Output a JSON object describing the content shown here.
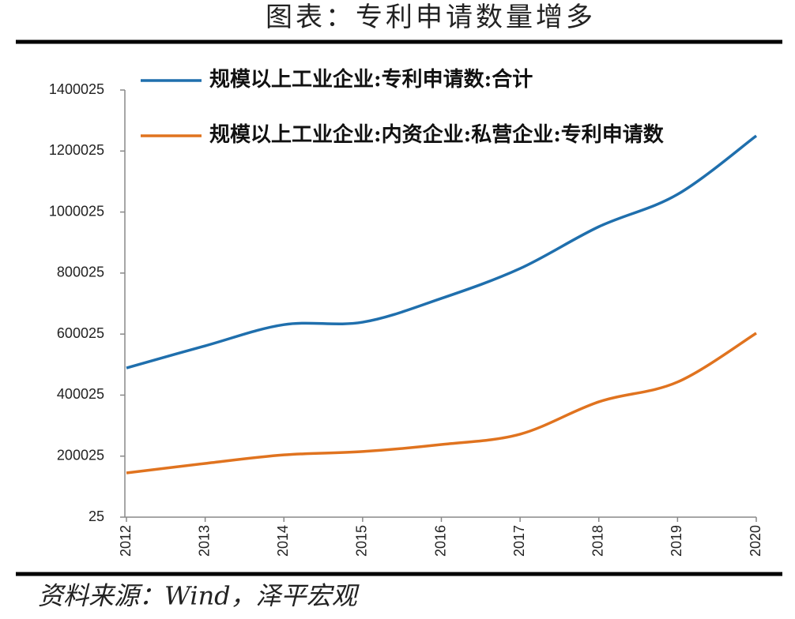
{
  "chart_data": {
    "type": "line",
    "title": "图表：专利申请数量增多",
    "source": "资料来源：Wind，泽平宏观",
    "categories": [
      "2012",
      "2013",
      "2014",
      "2015",
      "2016",
      "2017",
      "2018",
      "2019",
      "2020"
    ],
    "series": [
      {
        "name": "规模以上工业企业:专利申请数:合计",
        "color": "#1f6fad",
        "values": [
          489000,
          561500,
          631000,
          639000,
          717000,
          815000,
          952000,
          1058000,
          1250000
        ]
      },
      {
        "name": "规模以上工业企业:内资企业:私营企业:专利申请数",
        "color": "#e0731f",
        "values": [
          145000,
          176000,
          204000,
          215000,
          238000,
          272000,
          378000,
          443000,
          603000
        ]
      }
    ],
    "ylim": [
      25,
      1400025
    ],
    "yticks": [
      25,
      200025,
      400025,
      600025,
      800025,
      1000025,
      1200025,
      1400025
    ],
    "grid": false,
    "legend": "upper left"
  }
}
